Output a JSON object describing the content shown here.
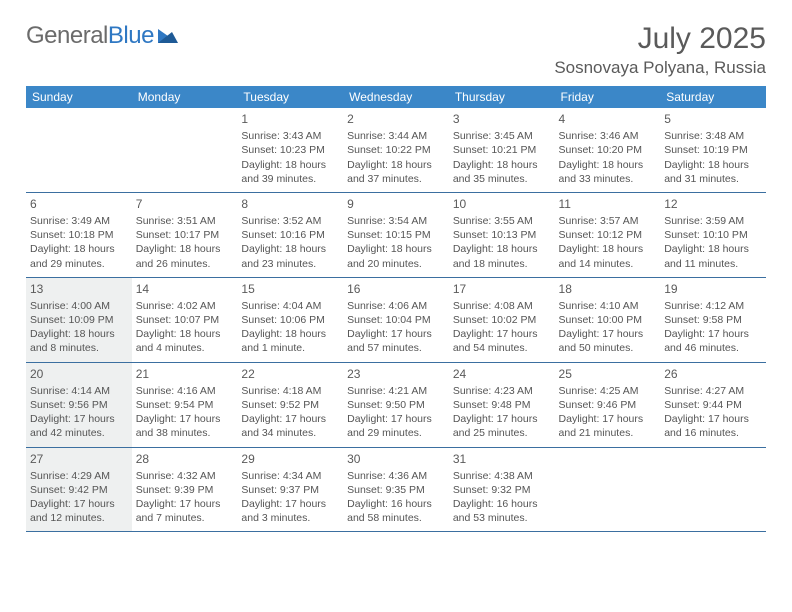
{
  "logo": {
    "text1": "General",
    "text2": "Blue"
  },
  "title": "July 2025",
  "location": "Sosnovaya Polyana, Russia",
  "header_bg": "#3b87c8",
  "header_fg": "#ffffff",
  "border_color": "#3b6fa0",
  "shaded_bg": "#eef0f0",
  "days": [
    "Sunday",
    "Monday",
    "Tuesday",
    "Wednesday",
    "Thursday",
    "Friday",
    "Saturday"
  ],
  "weeks": [
    [
      null,
      null,
      {
        "n": "1",
        "sr": "3:43 AM",
        "ss": "10:23 PM",
        "dl": "18 hours and 39 minutes."
      },
      {
        "n": "2",
        "sr": "3:44 AM",
        "ss": "10:22 PM",
        "dl": "18 hours and 37 minutes."
      },
      {
        "n": "3",
        "sr": "3:45 AM",
        "ss": "10:21 PM",
        "dl": "18 hours and 35 minutes."
      },
      {
        "n": "4",
        "sr": "3:46 AM",
        "ss": "10:20 PM",
        "dl": "18 hours and 33 minutes."
      },
      {
        "n": "5",
        "sr": "3:48 AM",
        "ss": "10:19 PM",
        "dl": "18 hours and 31 minutes."
      }
    ],
    [
      {
        "n": "6",
        "sr": "3:49 AM",
        "ss": "10:18 PM",
        "dl": "18 hours and 29 minutes."
      },
      {
        "n": "7",
        "sr": "3:51 AM",
        "ss": "10:17 PM",
        "dl": "18 hours and 26 minutes."
      },
      {
        "n": "8",
        "sr": "3:52 AM",
        "ss": "10:16 PM",
        "dl": "18 hours and 23 minutes."
      },
      {
        "n": "9",
        "sr": "3:54 AM",
        "ss": "10:15 PM",
        "dl": "18 hours and 20 minutes."
      },
      {
        "n": "10",
        "sr": "3:55 AM",
        "ss": "10:13 PM",
        "dl": "18 hours and 18 minutes."
      },
      {
        "n": "11",
        "sr": "3:57 AM",
        "ss": "10:12 PM",
        "dl": "18 hours and 14 minutes."
      },
      {
        "n": "12",
        "sr": "3:59 AM",
        "ss": "10:10 PM",
        "dl": "18 hours and 11 minutes."
      }
    ],
    [
      {
        "n": "13",
        "sr": "4:00 AM",
        "ss": "10:09 PM",
        "dl": "18 hours and 8 minutes.",
        "shaded": true
      },
      {
        "n": "14",
        "sr": "4:02 AM",
        "ss": "10:07 PM",
        "dl": "18 hours and 4 minutes."
      },
      {
        "n": "15",
        "sr": "4:04 AM",
        "ss": "10:06 PM",
        "dl": "18 hours and 1 minute."
      },
      {
        "n": "16",
        "sr": "4:06 AM",
        "ss": "10:04 PM",
        "dl": "17 hours and 57 minutes."
      },
      {
        "n": "17",
        "sr": "4:08 AM",
        "ss": "10:02 PM",
        "dl": "17 hours and 54 minutes."
      },
      {
        "n": "18",
        "sr": "4:10 AM",
        "ss": "10:00 PM",
        "dl": "17 hours and 50 minutes."
      },
      {
        "n": "19",
        "sr": "4:12 AM",
        "ss": "9:58 PM",
        "dl": "17 hours and 46 minutes."
      }
    ],
    [
      {
        "n": "20",
        "sr": "4:14 AM",
        "ss": "9:56 PM",
        "dl": "17 hours and 42 minutes.",
        "shaded": true
      },
      {
        "n": "21",
        "sr": "4:16 AM",
        "ss": "9:54 PM",
        "dl": "17 hours and 38 minutes."
      },
      {
        "n": "22",
        "sr": "4:18 AM",
        "ss": "9:52 PM",
        "dl": "17 hours and 34 minutes."
      },
      {
        "n": "23",
        "sr": "4:21 AM",
        "ss": "9:50 PM",
        "dl": "17 hours and 29 minutes."
      },
      {
        "n": "24",
        "sr": "4:23 AM",
        "ss": "9:48 PM",
        "dl": "17 hours and 25 minutes."
      },
      {
        "n": "25",
        "sr": "4:25 AM",
        "ss": "9:46 PM",
        "dl": "17 hours and 21 minutes."
      },
      {
        "n": "26",
        "sr": "4:27 AM",
        "ss": "9:44 PM",
        "dl": "17 hours and 16 minutes."
      }
    ],
    [
      {
        "n": "27",
        "sr": "4:29 AM",
        "ss": "9:42 PM",
        "dl": "17 hours and 12 minutes.",
        "shaded": true
      },
      {
        "n": "28",
        "sr": "4:32 AM",
        "ss": "9:39 PM",
        "dl": "17 hours and 7 minutes."
      },
      {
        "n": "29",
        "sr": "4:34 AM",
        "ss": "9:37 PM",
        "dl": "17 hours and 3 minutes."
      },
      {
        "n": "30",
        "sr": "4:36 AM",
        "ss": "9:35 PM",
        "dl": "16 hours and 58 minutes."
      },
      {
        "n": "31",
        "sr": "4:38 AM",
        "ss": "9:32 PM",
        "dl": "16 hours and 53 minutes."
      },
      null,
      null
    ]
  ]
}
